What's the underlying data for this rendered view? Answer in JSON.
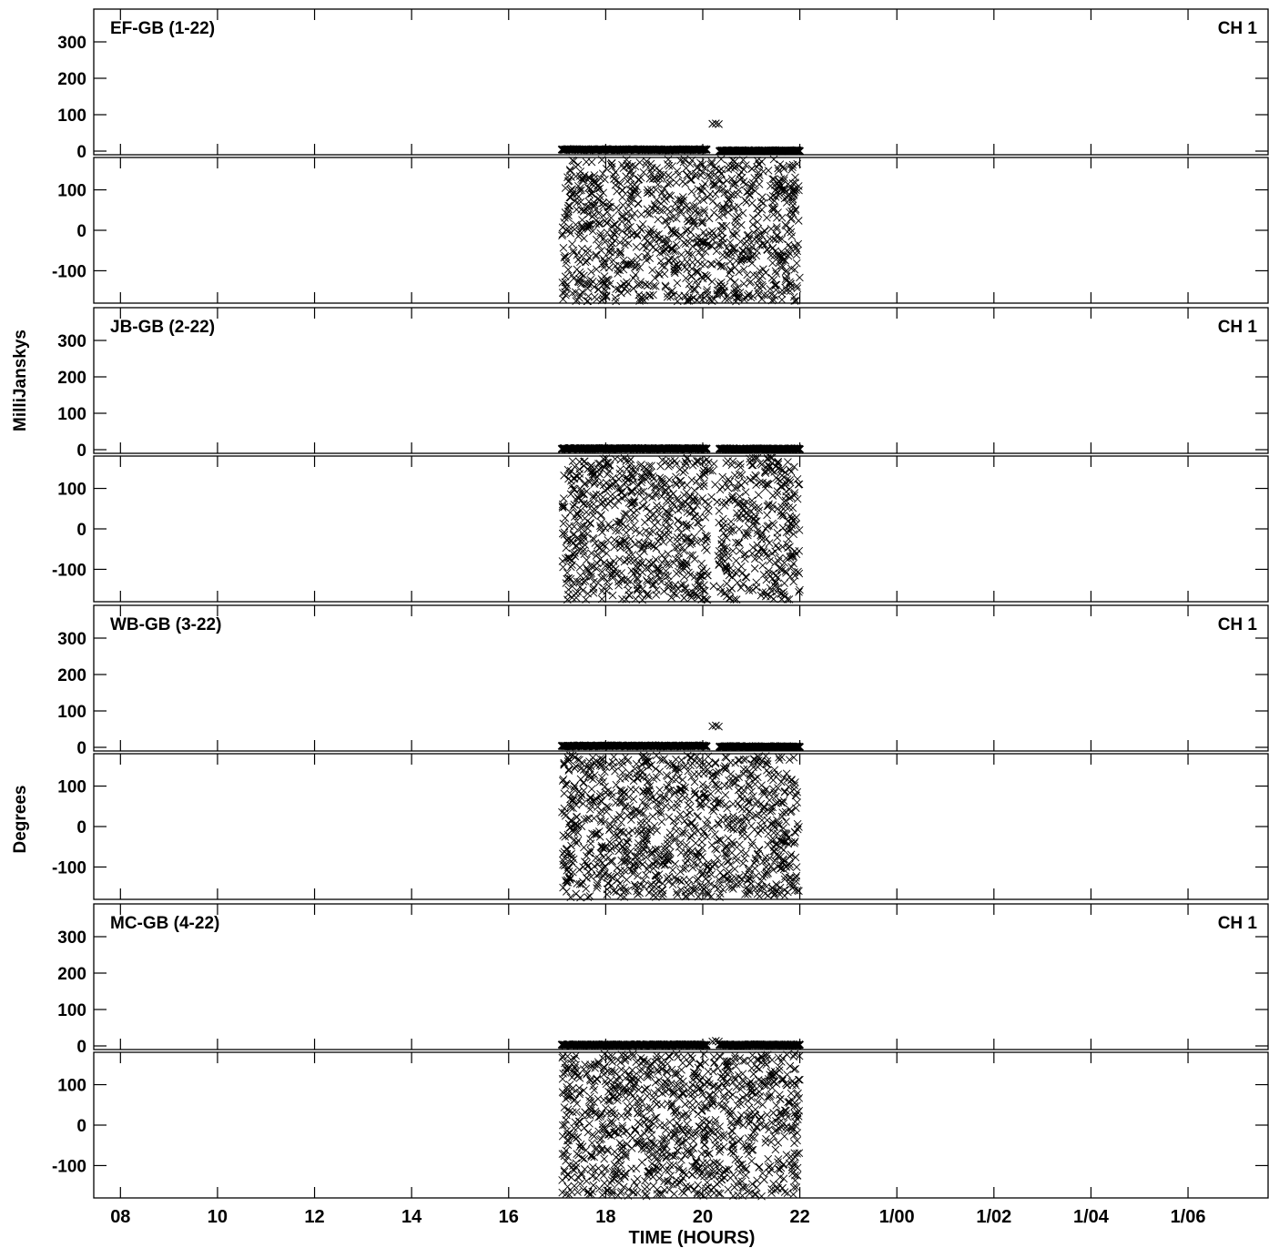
{
  "x_axis": {
    "label": "TIME (HOURS)",
    "ticks": [
      {
        "value": 8,
        "label": "08"
      },
      {
        "value": 10,
        "label": "10"
      },
      {
        "value": 12,
        "label": "12"
      },
      {
        "value": 14,
        "label": "14"
      },
      {
        "value": 16,
        "label": "16"
      },
      {
        "value": 18,
        "label": "18"
      },
      {
        "value": 20,
        "label": "20"
      },
      {
        "value": 22,
        "label": "22"
      },
      {
        "value": 24,
        "label": "1/00"
      },
      {
        "value": 26,
        "label": "1/02"
      },
      {
        "value": 28,
        "label": "1/04"
      },
      {
        "value": 30,
        "label": "1/06"
      }
    ],
    "range": [
      7.45,
      31.65
    ]
  },
  "y_label_top": "MilliJanskys",
  "y_label_bottom": "Degrees",
  "channel_label": "CH 1",
  "chart_data": {
    "type": "scatter",
    "xlabel": "TIME (HOURS)",
    "marker": "x",
    "panels": [
      {
        "baseline": "EF-GB (1-22)",
        "amplitude": {
          "ylabel": "MilliJanskys",
          "ylim": [
            -10,
            390
          ],
          "ticks": [
            0,
            100,
            200,
            300
          ],
          "segments": [
            [
              17.1,
              20.1,
              3
            ],
            [
              20.35,
              22.0,
              0
            ]
          ],
          "outliers": [
            [
              20.2,
              75
            ],
            [
              20.27,
              76
            ],
            [
              20.33,
              74
            ]
          ]
        },
        "phase": {
          "ylabel": "Degrees",
          "ylim": [
            -180,
            180
          ],
          "ticks": [
            -100,
            0,
            100
          ],
          "range": [
            17.1,
            22.0
          ]
        }
      },
      {
        "baseline": "JB-GB (2-22)",
        "amplitude": {
          "ylabel": "MilliJanskys",
          "ylim": [
            -10,
            390
          ],
          "ticks": [
            0,
            100,
            200,
            300
          ],
          "segments": [
            [
              17.1,
              20.1,
              2
            ],
            [
              20.35,
              22.0,
              1
            ]
          ],
          "outliers": []
        },
        "phase": {
          "ylabel": "Degrees",
          "ylim": [
            -180,
            180
          ],
          "ticks": [
            -100,
            0,
            100
          ],
          "range": [
            17.1,
            22.0
          ]
        }
      },
      {
        "baseline": "WB-GB (3-22)",
        "amplitude": {
          "ylabel": "MilliJanskys",
          "ylim": [
            -10,
            390
          ],
          "ticks": [
            0,
            100,
            200,
            300
          ],
          "segments": [
            [
              17.1,
              20.1,
              3
            ],
            [
              20.35,
              22.0,
              1
            ]
          ],
          "outliers": [
            [
              20.2,
              58
            ],
            [
              20.27,
              60
            ],
            [
              20.33,
              57
            ]
          ]
        },
        "phase": {
          "ylabel": "Degrees",
          "ylim": [
            -180,
            180
          ],
          "ticks": [
            -100,
            0,
            100
          ],
          "range": [
            17.1,
            22.0
          ]
        }
      },
      {
        "baseline": "MC-GB (4-22)",
        "amplitude": {
          "ylabel": "MilliJanskys",
          "ylim": [
            -10,
            390
          ],
          "ticks": [
            0,
            100,
            200,
            300
          ],
          "segments": [
            [
              17.1,
              20.1,
              2
            ],
            [
              20.35,
              22.0,
              2
            ]
          ],
          "outliers": [
            [
              20.2,
              12
            ],
            [
              20.27,
              14
            ],
            [
              20.33,
              12
            ]
          ]
        },
        "phase": {
          "ylabel": "Degrees",
          "ylim": [
            -180,
            180
          ],
          "ticks": [
            -100,
            0,
            100
          ],
          "range": [
            17.1,
            22.0
          ]
        }
      }
    ]
  }
}
